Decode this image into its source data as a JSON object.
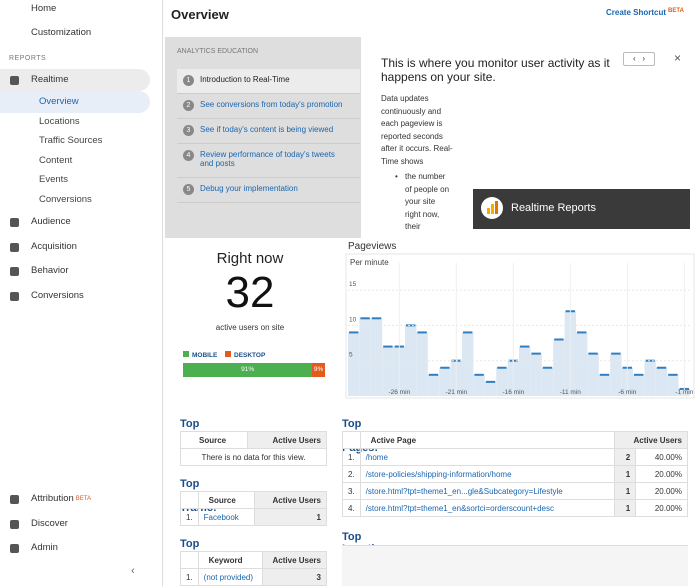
{
  "sidebar": {
    "top": [
      {
        "label": "Home"
      },
      {
        "label": "Customization"
      }
    ],
    "section": "REPORTS",
    "realtime": "Realtime",
    "realtime_items": [
      "Overview",
      "Locations",
      "Traffic Sources",
      "Content",
      "Events",
      "Conversions"
    ],
    "reports": [
      "Audience",
      "Acquisition",
      "Behavior",
      "Conversions"
    ],
    "bottom": [
      {
        "label": "Attribution",
        "badge": "BETA"
      },
      {
        "label": "Discover"
      },
      {
        "label": "Admin"
      }
    ]
  },
  "header": {
    "title": "Overview",
    "shortcut": "Create Shortcut",
    "badge": "BETA"
  },
  "education": {
    "label": "ANALYTICS EDUCATION",
    "steps": [
      {
        "num": "1",
        "text": "Introduction to Real-Time"
      },
      {
        "num": "2",
        "text": "See conversions from today's promotion"
      },
      {
        "num": "3",
        "text": "See if today's content is being viewed"
      },
      {
        "num": "4",
        "text": "Review performance of today's tweets and posts"
      },
      {
        "num": "5",
        "text": "Debug your implementation"
      }
    ],
    "heading": "This is where you monitor user activity as it happens on your site.",
    "body": "Data updates continuously and each pageview is reported seconds after it occurs. Real-Time shows",
    "bullet": "the number of people on your site right now, their",
    "video": "Realtime Reports"
  },
  "right_now": {
    "title": "Right now",
    "count": "32",
    "caption": "active users on site",
    "legend": [
      "MOBILE",
      "DESKTOP"
    ],
    "colors": [
      "#4caf50",
      "#e25a1c"
    ],
    "values": [
      91,
      9
    ],
    "value_labels": [
      "91%",
      "9%"
    ]
  },
  "chart_data": {
    "type": "bar",
    "title": "Pageviews",
    "subtitle": "Per minute",
    "x": [
      -30,
      -29,
      -28,
      -27,
      -26,
      -25,
      -24,
      -23,
      -22,
      -21,
      -20,
      -19,
      -18,
      -17,
      -16,
      -15,
      -14,
      -13,
      -12,
      -11,
      -10,
      -9,
      -8,
      -7,
      -6,
      -5,
      -4,
      -3,
      -2,
      -1
    ],
    "values": [
      9,
      11,
      11,
      7,
      7,
      10,
      9,
      3,
      4,
      5,
      9,
      3,
      2,
      4,
      5,
      7,
      6,
      4,
      8,
      12,
      9,
      6,
      3,
      6,
      4,
      3,
      5,
      4,
      3,
      1
    ],
    "color": "#2f7ec2",
    "xlim": [
      -30.5,
      -0.5
    ],
    "xticks": [
      {
        "value": -26,
        "label": "-26 min"
      },
      {
        "value": -21,
        "label": "-21 min"
      },
      {
        "value": -16,
        "label": "-16 min"
      },
      {
        "value": -11,
        "label": "-11 min"
      },
      {
        "value": -6,
        "label": "-6 min"
      },
      {
        "value": -1,
        "label": "-1 min"
      }
    ],
    "ylim": [
      0,
      16
    ],
    "yticks": [
      5,
      10,
      15
    ]
  },
  "referrals": {
    "title": "Top Referrals:",
    "headers": [
      "Source",
      "Active Users"
    ],
    "empty": "There is no data for this view."
  },
  "social": {
    "title": "Top Social Traffic:",
    "headers": [
      "Source",
      "Active Users"
    ],
    "rows": [
      [
        "1.",
        "Facebook",
        "1"
      ]
    ]
  },
  "keywords": {
    "title": "Top Keywords:",
    "headers": [
      "Keyword",
      "Active Users"
    ],
    "rows": [
      [
        "1.",
        "(not provided)",
        "3"
      ]
    ]
  },
  "pages": {
    "title": "Top Active Pages:",
    "headers": [
      "Active Page",
      "Active Users"
    ],
    "rows": [
      [
        "1.",
        "/home",
        "2",
        "40.00%"
      ],
      [
        "2.",
        "/store-policies/shipping-information/home",
        "1",
        "20.00%"
      ],
      [
        "3.",
        "/store.html?tpt=theme1_en...gle&Subcategory=Lifestyle",
        "1",
        "20.00%"
      ],
      [
        "4.",
        "/store.html?tpt=theme1_en&sortci=orderscount+desc",
        "1",
        "20.00%"
      ]
    ]
  },
  "locations": {
    "title": "Top Locations:"
  }
}
